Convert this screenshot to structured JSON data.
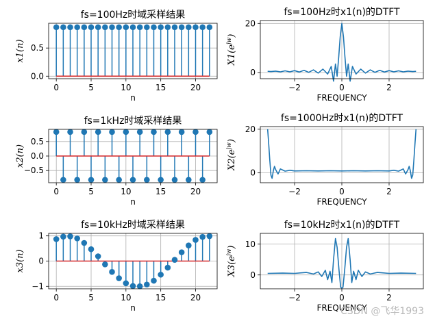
{
  "watermark": "CSDN @飞华1993",
  "chart_data": [
    {
      "type": "stem",
      "title": "fs=100Hz时域采样结果",
      "xlabel": "n",
      "ylabel": "x1(n)",
      "xlim": [
        -1.1,
        23.1
      ],
      "ylim": [
        -0.045,
        0.94
      ],
      "xticks": [
        0,
        5,
        10,
        15,
        20
      ],
      "yticks": [
        0.0,
        0.5
      ],
      "ytick_labels": [
        "0.0",
        "0.5"
      ],
      "grid": true,
      "x": [
        0,
        1,
        2,
        3,
        4,
        5,
        6,
        7,
        8,
        9,
        10,
        11,
        12,
        13,
        14,
        15,
        16,
        17,
        18,
        19,
        20,
        21,
        22
      ],
      "values": [
        0.87,
        0.87,
        0.87,
        0.87,
        0.87,
        0.87,
        0.87,
        0.87,
        0.87,
        0.87,
        0.87,
        0.87,
        0.87,
        0.87,
        0.87,
        0.87,
        0.87,
        0.87,
        0.87,
        0.87,
        0.87,
        0.87,
        0.87
      ],
      "colors": {
        "stem": "#1f77b4",
        "baseline": "#d62728"
      }
    },
    {
      "type": "line",
      "title": "fs=100Hz时x1(n)的DTFT",
      "xlabel": "FREQUENCY",
      "ylabel": "X1(e^jw)",
      "xlim": [
        -3.45,
        3.45
      ],
      "ylim": [
        -2.5,
        21.2
      ],
      "xticks": [
        -2,
        0,
        2
      ],
      "yticks": [
        0,
        20
      ],
      "grid": true,
      "x": [
        -3.14,
        -3.0,
        -2.8,
        -2.6,
        -2.4,
        -2.2,
        -2.0,
        -1.8,
        -1.6,
        -1.4,
        -1.2,
        -1.0,
        -0.8,
        -0.6,
        -0.45,
        -0.35,
        -0.27,
        -0.2,
        -0.13,
        -0.07,
        0.0,
        0.07,
        0.13,
        0.2,
        0.27,
        0.35,
        0.45,
        0.6,
        0.8,
        1.0,
        1.2,
        1.4,
        1.6,
        1.8,
        2.0,
        2.2,
        2.4,
        2.6,
        2.8,
        3.0,
        3.14
      ],
      "values": [
        0.5,
        0.4,
        0.6,
        0.3,
        0.7,
        0.3,
        0.8,
        0.2,
        0.9,
        0.1,
        1.1,
        -0.2,
        1.4,
        -0.6,
        2.5,
        -3.5,
        3.5,
        -1.5,
        6.5,
        14.5,
        20.0,
        14.5,
        6.5,
        -1.5,
        3.5,
        -3.5,
        2.5,
        -0.6,
        1.4,
        -0.2,
        1.1,
        0.1,
        0.9,
        0.2,
        0.8,
        0.3,
        0.7,
        0.3,
        0.6,
        0.4,
        0.5
      ],
      "colors": {
        "line": "#1f77b4"
      }
    },
    {
      "type": "stem",
      "title": "fs=1kHz时域采样结果",
      "xlabel": "n",
      "ylabel": "x2(n)",
      "xlim": [
        -1.1,
        23.1
      ],
      "ylim": [
        -0.92,
        0.92
      ],
      "xticks": [
        0,
        5,
        10,
        15,
        20
      ],
      "yticks": [
        -0.5,
        0.0,
        0.5
      ],
      "ytick_labels": [
        "−0.5",
        "0.0",
        "0.5"
      ],
      "grid": true,
      "x": [
        0,
        1,
        2,
        3,
        4,
        5,
        6,
        7,
        8,
        9,
        10,
        11,
        12,
        13,
        14,
        15,
        16,
        17,
        18,
        19,
        20,
        21,
        22
      ],
      "values": [
        0.83,
        -0.82,
        0.83,
        -0.82,
        0.83,
        -0.82,
        0.83,
        -0.82,
        0.83,
        -0.82,
        0.83,
        -0.82,
        0.83,
        -0.82,
        0.83,
        -0.82,
        0.83,
        -0.82,
        0.83,
        -0.82,
        0.83,
        -0.82,
        0.83
      ],
      "colors": {
        "stem": "#1f77b4",
        "baseline": "#d62728"
      }
    },
    {
      "type": "line",
      "title": "fs=1000Hz时x1(n)的DTFT",
      "xlabel": "FREQUENCY",
      "ylabel": "X2(e^jw)",
      "xlim": [
        -3.45,
        3.45
      ],
      "ylim": [
        -4.5,
        21.2
      ],
      "xticks": [
        -2,
        0,
        2
      ],
      "yticks": [
        0,
        20
      ],
      "grid": true,
      "x": [
        -3.14,
        -3.1,
        -3.05,
        -3.0,
        -2.95,
        -2.9,
        -2.85,
        -2.8,
        -2.7,
        -2.6,
        -2.4,
        -2.2,
        -2.0,
        -1.5,
        -1.0,
        -0.5,
        0.0,
        0.5,
        1.0,
        1.5,
        2.0,
        2.2,
        2.4,
        2.6,
        2.7,
        2.8,
        2.85,
        2.9,
        2.95,
        3.0,
        3.05,
        3.1,
        3.14
      ],
      "values": [
        20.0,
        14.0,
        6.0,
        -1.0,
        -2.5,
        1.0,
        3.0,
        1.5,
        -0.5,
        1.8,
        0.8,
        1.2,
        0.9,
        1.0,
        0.9,
        1.0,
        0.9,
        1.0,
        0.9,
        1.0,
        0.9,
        1.2,
        0.8,
        1.8,
        -0.5,
        1.5,
        3.0,
        1.0,
        -2.5,
        -1.0,
        6.0,
        14.0,
        20.0
      ],
      "colors": {
        "line": "#1f77b4"
      }
    },
    {
      "type": "stem",
      "title": "fs=10kHz时域采样结果",
      "xlabel": "n",
      "ylabel": "x3(n)",
      "xlim": [
        -1.1,
        23.1
      ],
      "ylim": [
        -1.1,
        1.1
      ],
      "xticks": [
        0,
        5,
        10,
        15,
        20
      ],
      "yticks": [
        -1,
        0,
        1
      ],
      "ytick_labels": [
        "−1",
        "0",
        "1"
      ],
      "grid": true,
      "x": [
        0,
        1,
        2,
        3,
        4,
        5,
        6,
        7,
        8,
        9,
        10,
        11,
        12,
        13,
        14,
        15,
        16,
        17,
        18,
        19,
        20,
        21,
        22
      ],
      "values": [
        0.87,
        0.97,
        0.98,
        0.9,
        0.72,
        0.47,
        0.19,
        -0.13,
        -0.43,
        -0.68,
        -0.88,
        -0.99,
        -1.0,
        -0.93,
        -0.78,
        -0.54,
        -0.26,
        0.05,
        0.35,
        0.62,
        0.84,
        0.96,
        0.99
      ],
      "colors": {
        "stem": "#1f77b4",
        "baseline": "#d62728"
      }
    },
    {
      "type": "line",
      "title": "fs=10kHz时x1(n)的DTFT",
      "xlabel": "FREQUENCY",
      "ylabel": "X3(e^jw)",
      "xlim": [
        -3.45,
        3.45
      ],
      "ylim": [
        -4.5,
        13.5
      ],
      "xticks": [
        -2,
        0,
        2
      ],
      "yticks": [
        0,
        10
      ],
      "grid": true,
      "x": [
        -3.14,
        -2.5,
        -2.0,
        -1.5,
        -1.2,
        -1.0,
        -0.85,
        -0.7,
        -0.6,
        -0.5,
        -0.42,
        -0.35,
        -0.27,
        -0.2,
        -0.12,
        -0.05,
        0.0,
        0.05,
        0.12,
        0.2,
        0.27,
        0.35,
        0.42,
        0.5,
        0.6,
        0.7,
        0.85,
        1.0,
        1.2,
        1.5,
        2.0,
        2.5,
        3.14
      ],
      "values": [
        0.5,
        0.6,
        0.5,
        0.8,
        0.3,
        1.0,
        -0.5,
        1.5,
        -1.5,
        1.2,
        -2.5,
        5.0,
        11.8,
        9.0,
        1.5,
        -4.0,
        -4.3,
        -4.0,
        1.5,
        9.0,
        11.8,
        5.0,
        -2.5,
        1.2,
        -1.5,
        1.5,
        -0.5,
        1.0,
        0.3,
        0.8,
        0.5,
        0.6,
        0.5
      ],
      "colors": {
        "line": "#1f77b4"
      }
    }
  ]
}
